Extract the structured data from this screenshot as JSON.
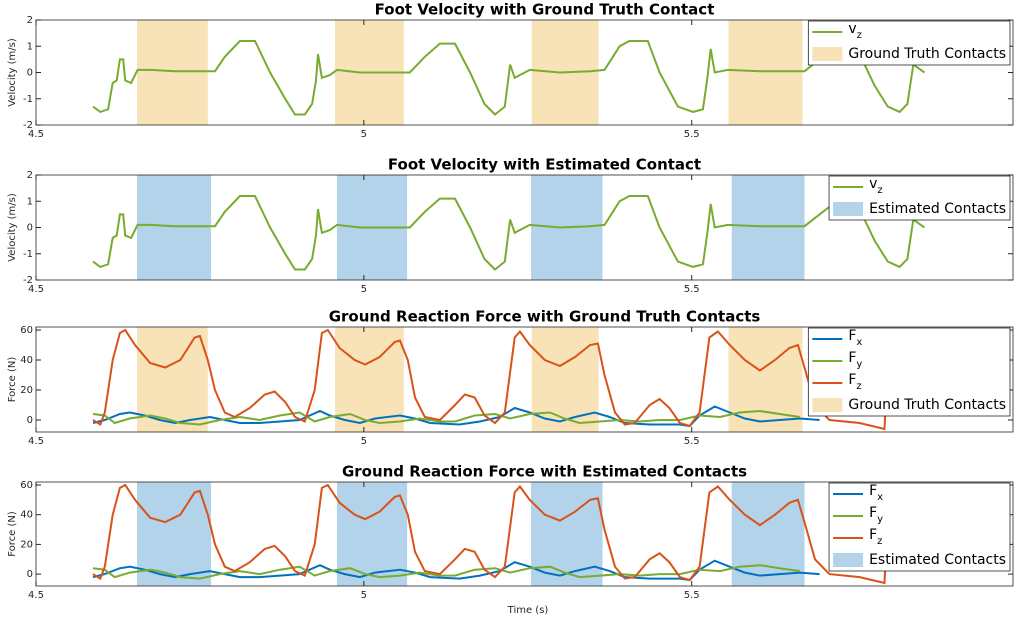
{
  "chart_data": [
    {
      "type": "line",
      "title": "Foot Velocity with Ground Truth Contact",
      "ylabel": "Velocity (m/s)",
      "xlim": [
        4.5,
        5.99
      ],
      "xticks": [
        4.5,
        5,
        5.5
      ],
      "ylim": [
        -2,
        2
      ],
      "yticks": [
        -2,
        -1,
        0,
        1,
        2
      ],
      "x": [
        4.587,
        4.598,
        4.61,
        4.617,
        4.623,
        4.628,
        4.633,
        4.636,
        4.645,
        4.655,
        4.674,
        4.712,
        4.75,
        4.773,
        4.788,
        4.811,
        4.834,
        4.857,
        4.88,
        4.895,
        4.91,
        4.921,
        4.927,
        4.93,
        4.936,
        4.948,
        4.959,
        4.994,
        5.04,
        5.07,
        5.093,
        5.116,
        5.139,
        5.162,
        5.184,
        5.2,
        5.215,
        5.223,
        5.23,
        5.253,
        5.299,
        5.345,
        5.367,
        5.39,
        5.405,
        5.433,
        5.451,
        5.479,
        5.502,
        5.517,
        5.524,
        5.529,
        5.535,
        5.555,
        5.604,
        5.672,
        5.695,
        5.726,
        5.756,
        5.779,
        5.799,
        5.817,
        5.829,
        5.838,
        5.855
      ],
      "series": [
        {
          "name": "v",
          "subscript": "z",
          "color": "#77ac30",
          "values": [
            -1.3,
            -1.5,
            -1.4,
            -0.4,
            -0.3,
            0.5,
            0.5,
            -0.3,
            -0.4,
            0.1,
            0.1,
            0.05,
            0.05,
            0.05,
            0.6,
            1.2,
            1.2,
            0.0,
            -1.0,
            -1.6,
            -1.6,
            -1.2,
            -0.3,
            0.7,
            -0.2,
            -0.1,
            0.1,
            0.0,
            0.0,
            0.0,
            0.6,
            1.1,
            1.1,
            0.0,
            -1.2,
            -1.6,
            -1.3,
            0.3,
            -0.2,
            0.1,
            0.0,
            0.05,
            0.1,
            1.0,
            1.2,
            1.2,
            0.0,
            -1.3,
            -1.5,
            -1.4,
            -0.2,
            0.9,
            0.0,
            0.1,
            0.05,
            0.05,
            0.5,
            1.1,
            0.7,
            -0.5,
            -1.3,
            -1.5,
            -1.2,
            0.3,
            0.0
          ]
        }
      ],
      "contacts": {
        "name": "Ground Truth Contacts",
        "color": "#f8e3b8",
        "spans": [
          [
            4.654,
            4.762
          ],
          [
            4.956,
            5.061
          ],
          [
            5.256,
            5.358
          ],
          [
            5.556,
            5.669
          ]
        ]
      }
    },
    {
      "type": "line",
      "title": "Foot Velocity with Estimated Contact",
      "ylabel": "Velocity (m/s)",
      "xlim": [
        4.5,
        5.99
      ],
      "xticks": [
        4.5,
        5,
        5.5
      ],
      "ylim": [
        -2,
        2
      ],
      "yticks": [
        -2,
        -1,
        0,
        1,
        2
      ],
      "x": [
        4.587,
        4.598,
        4.61,
        4.617,
        4.623,
        4.628,
        4.633,
        4.636,
        4.645,
        4.655,
        4.674,
        4.712,
        4.75,
        4.773,
        4.788,
        4.811,
        4.834,
        4.857,
        4.88,
        4.895,
        4.91,
        4.921,
        4.927,
        4.93,
        4.936,
        4.948,
        4.959,
        4.994,
        5.04,
        5.07,
        5.093,
        5.116,
        5.139,
        5.162,
        5.184,
        5.2,
        5.215,
        5.223,
        5.23,
        5.253,
        5.299,
        5.345,
        5.367,
        5.39,
        5.405,
        5.433,
        5.451,
        5.479,
        5.502,
        5.517,
        5.524,
        5.529,
        5.535,
        5.555,
        5.604,
        5.672,
        5.695,
        5.726,
        5.756,
        5.779,
        5.799,
        5.817,
        5.829,
        5.838,
        5.855
      ],
      "series": [
        {
          "name": "v",
          "subscript": "z",
          "color": "#77ac30",
          "values": [
            -1.3,
            -1.5,
            -1.4,
            -0.4,
            -0.3,
            0.5,
            0.5,
            -0.3,
            -0.4,
            0.1,
            0.1,
            0.05,
            0.05,
            0.05,
            0.6,
            1.2,
            1.2,
            0.0,
            -1.0,
            -1.6,
            -1.6,
            -1.2,
            -0.3,
            0.7,
            -0.2,
            -0.1,
            0.1,
            0.0,
            0.0,
            0.0,
            0.6,
            1.1,
            1.1,
            0.0,
            -1.2,
            -1.6,
            -1.3,
            0.3,
            -0.2,
            0.1,
            0.0,
            0.05,
            0.1,
            1.0,
            1.2,
            1.2,
            0.0,
            -1.3,
            -1.5,
            -1.4,
            -0.2,
            0.9,
            0.0,
            0.1,
            0.05,
            0.05,
            0.5,
            1.1,
            0.7,
            -0.5,
            -1.3,
            -1.5,
            -1.2,
            0.3,
            0.0
          ]
        }
      ],
      "contacts": {
        "name": "Estimated Contacts",
        "color": "#b3d3eb",
        "spans": [
          [
            4.654,
            4.767
          ],
          [
            4.959,
            5.066
          ],
          [
            5.255,
            5.364
          ],
          [
            5.561,
            5.672
          ]
        ]
      }
    },
    {
      "type": "line",
      "title": "Ground Reaction Force with Ground Truth Contacts",
      "ylabel": "Force (N)",
      "xlim": [
        4.5,
        5.99
      ],
      "xticks": [
        4.5,
        5,
        5.5
      ],
      "ylim": [
        -8,
        62
      ],
      "yticks": [
        0,
        20,
        40,
        60
      ],
      "series": [
        {
          "name": "F",
          "subscript": "x",
          "color": "#0072bd",
          "x": [
            4.587,
            4.605,
            4.628,
            4.643,
            4.666,
            4.689,
            4.712,
            4.735,
            4.765,
            4.788,
            4.811,
            4.841,
            4.872,
            4.902,
            4.933,
            4.948,
            4.971,
            4.994,
            5.017,
            5.055,
            5.078,
            5.101,
            5.146,
            5.177,
            5.207,
            5.23,
            5.253,
            5.276,
            5.299,
            5.322,
            5.352,
            5.375,
            5.398,
            5.436,
            5.482,
            5.497,
            5.512,
            5.535,
            5.558,
            5.581,
            5.604,
            5.634,
            5.665,
            5.695
          ],
          "values": [
            -2,
            0,
            4,
            5,
            3,
            0,
            -2,
            0,
            2,
            0,
            -2,
            -2,
            -1,
            0,
            6,
            3,
            0,
            -2,
            1,
            3,
            1,
            -2,
            -3,
            -1,
            2,
            8,
            5,
            1,
            -1,
            2,
            5,
            2,
            -2,
            -3,
            -3,
            -4,
            3,
            9,
            5,
            1,
            -1,
            0,
            1,
            0
          ]
        },
        {
          "name": "F",
          "subscript": "y",
          "color": "#77ac30",
          "x": [
            4.587,
            4.605,
            4.62,
            4.643,
            4.674,
            4.697,
            4.72,
            4.75,
            4.78,
            4.811,
            4.841,
            4.872,
            4.902,
            4.925,
            4.948,
            4.979,
            5.002,
            5.024,
            5.055,
            5.085,
            5.116,
            5.139,
            5.169,
            5.2,
            5.223,
            5.253,
            5.284,
            5.306,
            5.329,
            5.36,
            5.39,
            5.421,
            5.451,
            5.482,
            5.512,
            5.543,
            5.573,
            5.604,
            5.634,
            5.665
          ],
          "values": [
            4,
            3,
            -2,
            1,
            3,
            1,
            -2,
            -3,
            0,
            2,
            0,
            3,
            5,
            -1,
            2,
            4,
            0,
            -2,
            -1,
            1,
            -1,
            -1,
            3,
            4,
            1,
            4,
            5,
            1,
            -2,
            -1,
            0,
            -1,
            0,
            0,
            3,
            2,
            5,
            6,
            4,
            2
          ]
        },
        {
          "name": "F",
          "subscript": "z",
          "color": "#d95319",
          "x": [
            4.587,
            4.598,
            4.605,
            4.617,
            4.628,
            4.636,
            4.651,
            4.674,
            4.697,
            4.72,
            4.742,
            4.75,
            4.762,
            4.773,
            4.788,
            4.803,
            4.826,
            4.849,
            4.864,
            4.88,
            4.895,
            4.91,
            4.925,
            4.936,
            4.945,
            4.963,
            4.986,
            5.002,
            5.024,
            5.047,
            5.055,
            5.067,
            5.078,
            5.093,
            5.116,
            5.139,
            5.154,
            5.169,
            5.184,
            5.2,
            5.215,
            5.23,
            5.238,
            5.253,
            5.276,
            5.299,
            5.322,
            5.345,
            5.357,
            5.367,
            5.383,
            5.398,
            5.413,
            5.436,
            5.451,
            5.466,
            5.482,
            5.497,
            5.512,
            5.527,
            5.54,
            5.558,
            5.581,
            5.604,
            5.627,
            5.649,
            5.662,
            5.672,
            5.688,
            5.71,
            5.756,
            5.794,
            5.8,
            5.806,
            5.812
          ],
          "values": [
            0,
            -3,
            5,
            40,
            58,
            60,
            50,
            38,
            35,
            40,
            55,
            56,
            40,
            20,
            5,
            2,
            8,
            17,
            19,
            12,
            2,
            -1,
            20,
            58,
            60,
            48,
            40,
            37,
            42,
            52,
            53,
            40,
            15,
            2,
            0,
            10,
            17,
            15,
            3,
            -2,
            5,
            55,
            59,
            50,
            40,
            36,
            42,
            50,
            51,
            30,
            5,
            -3,
            -2,
            10,
            14,
            8,
            -2,
            -4,
            5,
            55,
            59,
            50,
            40,
            33,
            40,
            48,
            50,
            35,
            10,
            0,
            -2,
            -6,
            50,
            58,
            56
          ]
        }
      ],
      "contacts": {
        "name": "Ground Truth Contacts",
        "color": "#f8e3b8",
        "spans": [
          [
            4.654,
            4.762
          ],
          [
            4.956,
            5.061
          ],
          [
            5.256,
            5.358
          ],
          [
            5.556,
            5.669
          ]
        ]
      }
    },
    {
      "type": "line",
      "title": "Ground Reaction Force with Estimated Contacts",
      "ylabel": "Force (N)",
      "xlabel": "Time (s)",
      "xlim": [
        4.5,
        5.99
      ],
      "xticks": [
        4.5,
        5,
        5.5
      ],
      "ylim": [
        -8,
        62
      ],
      "yticks": [
        0,
        20,
        40,
        60
      ],
      "series": [
        {
          "name": "F",
          "subscript": "x",
          "color": "#0072bd",
          "x": [
            4.587,
            4.605,
            4.628,
            4.643,
            4.666,
            4.689,
            4.712,
            4.735,
            4.765,
            4.788,
            4.811,
            4.841,
            4.872,
            4.902,
            4.933,
            4.948,
            4.971,
            4.994,
            5.017,
            5.055,
            5.078,
            5.101,
            5.146,
            5.177,
            5.207,
            5.23,
            5.253,
            5.276,
            5.299,
            5.322,
            5.352,
            5.375,
            5.398,
            5.436,
            5.482,
            5.497,
            5.512,
            5.535,
            5.558,
            5.581,
            5.604,
            5.634,
            5.665,
            5.695
          ],
          "values": [
            -2,
            0,
            4,
            5,
            3,
            0,
            -2,
            0,
            2,
            0,
            -2,
            -2,
            -1,
            0,
            6,
            3,
            0,
            -2,
            1,
            3,
            1,
            -2,
            -3,
            -1,
            2,
            8,
            5,
            1,
            -1,
            2,
            5,
            2,
            -2,
            -3,
            -3,
            -4,
            3,
            9,
            5,
            1,
            -1,
            0,
            1,
            0
          ]
        },
        {
          "name": "F",
          "subscript": "y",
          "color": "#77ac30",
          "x": [
            4.587,
            4.605,
            4.62,
            4.643,
            4.674,
            4.697,
            4.72,
            4.75,
            4.78,
            4.811,
            4.841,
            4.872,
            4.902,
            4.925,
            4.948,
            4.979,
            5.002,
            5.024,
            5.055,
            5.085,
            5.116,
            5.139,
            5.169,
            5.2,
            5.223,
            5.253,
            5.284,
            5.306,
            5.329,
            5.36,
            5.39,
            5.421,
            5.451,
            5.482,
            5.512,
            5.543,
            5.573,
            5.604,
            5.634,
            5.665
          ],
          "values": [
            4,
            3,
            -2,
            1,
            3,
            1,
            -2,
            -3,
            0,
            2,
            0,
            3,
            5,
            -1,
            2,
            4,
            0,
            -2,
            -1,
            1,
            -1,
            -1,
            3,
            4,
            1,
            4,
            5,
            1,
            -2,
            -1,
            0,
            -1,
            0,
            0,
            3,
            2,
            5,
            6,
            4,
            2
          ]
        },
        {
          "name": "F",
          "subscript": "z",
          "color": "#d95319",
          "x": [
            4.587,
            4.598,
            4.605,
            4.617,
            4.628,
            4.636,
            4.651,
            4.674,
            4.697,
            4.72,
            4.742,
            4.75,
            4.762,
            4.773,
            4.788,
            4.803,
            4.826,
            4.849,
            4.864,
            4.88,
            4.895,
            4.91,
            4.925,
            4.936,
            4.945,
            4.963,
            4.986,
            5.002,
            5.024,
            5.047,
            5.055,
            5.067,
            5.078,
            5.093,
            5.116,
            5.139,
            5.154,
            5.169,
            5.184,
            5.2,
            5.215,
            5.23,
            5.238,
            5.253,
            5.276,
            5.299,
            5.322,
            5.345,
            5.357,
            5.367,
            5.383,
            5.398,
            5.413,
            5.436,
            5.451,
            5.466,
            5.482,
            5.497,
            5.512,
            5.527,
            5.54,
            5.558,
            5.581,
            5.604,
            5.627,
            5.649,
            5.662,
            5.672,
            5.688,
            5.71,
            5.756,
            5.794,
            5.8,
            5.806,
            5.812
          ],
          "values": [
            0,
            -3,
            5,
            40,
            58,
            60,
            50,
            38,
            35,
            40,
            55,
            56,
            40,
            20,
            5,
            2,
            8,
            17,
            19,
            12,
            2,
            -1,
            20,
            58,
            60,
            48,
            40,
            37,
            42,
            52,
            53,
            40,
            15,
            2,
            0,
            10,
            17,
            15,
            3,
            -2,
            5,
            55,
            59,
            50,
            40,
            36,
            42,
            50,
            51,
            30,
            5,
            -3,
            -2,
            10,
            14,
            8,
            -2,
            -4,
            5,
            55,
            59,
            50,
            40,
            33,
            40,
            48,
            50,
            35,
            10,
            0,
            -2,
            -6,
            50,
            58,
            56
          ]
        }
      ],
      "contacts": {
        "name": "Estimated Contacts",
        "color": "#b3d3eb",
        "spans": [
          [
            4.654,
            4.767
          ],
          [
            4.959,
            5.066
          ],
          [
            5.255,
            5.364
          ],
          [
            5.561,
            5.672
          ]
        ]
      }
    }
  ]
}
